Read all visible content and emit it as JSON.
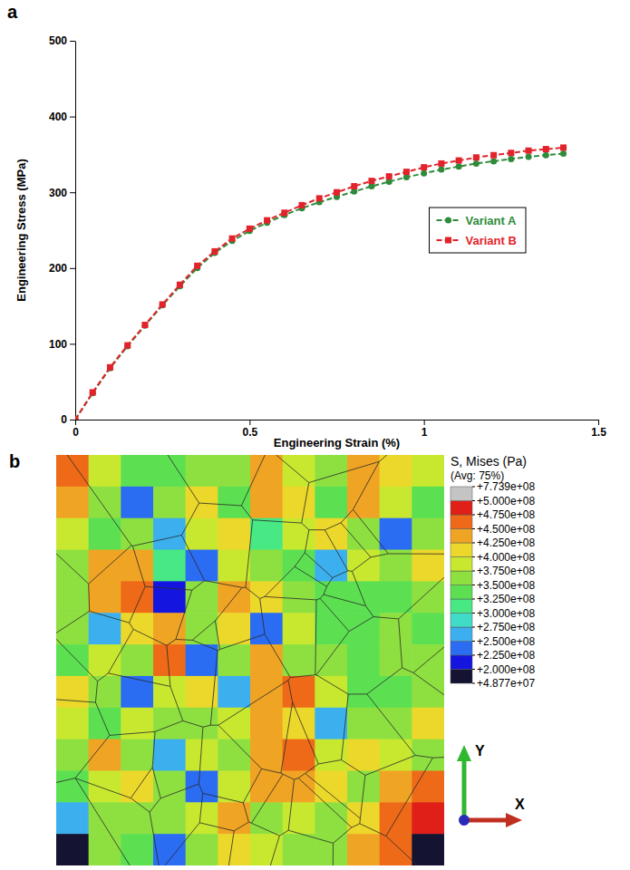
{
  "chart_data": [
    {
      "type": "line",
      "panel_label": "a",
      "x_label": "Engineering Strain (%)",
      "y_label": "Engineering Stress (MPa)",
      "x": [
        0,
        0.05,
        0.1,
        0.15,
        0.2,
        0.25,
        0.3,
        0.35,
        0.4,
        0.45,
        0.5,
        0.55,
        0.6,
        0.65,
        0.7,
        0.75,
        0.8,
        0.85,
        0.9,
        0.95,
        1,
        1.05,
        1.1,
        1.15,
        1.2,
        1.25,
        1.3,
        1.35,
        1.4
      ],
      "series": [
        {
          "name": "Variant A",
          "color": "#2e8b3a",
          "marker": "circle",
          "line_style": "dashed",
          "values": [
            0,
            35,
            68,
            97,
            124,
            151,
            176,
            200,
            220,
            236,
            249,
            260,
            270,
            279,
            287,
            294,
            301,
            308,
            314,
            320,
            325,
            330,
            334,
            338,
            341,
            344,
            347,
            349,
            351
          ]
        },
        {
          "name": "Variant B",
          "color": "#e3232b",
          "marker": "square",
          "line_style": "dashed",
          "values": [
            0,
            36,
            69,
            98,
            125,
            152,
            178,
            203,
            222,
            239,
            252,
            263,
            273,
            283,
            292,
            300,
            308,
            315,
            321,
            327,
            333,
            338,
            342,
            346,
            349,
            352,
            355,
            357,
            359
          ]
        }
      ],
      "xlim": [
        0,
        1.5
      ],
      "ylim": [
        0,
        500
      ],
      "xticks": [
        0,
        0.5,
        1,
        1.5
      ],
      "yticks": [
        0,
        100,
        200,
        300,
        400,
        500
      ],
      "legend": "center right"
    },
    {
      "type": "heatmap",
      "panel_label": "b",
      "annotations": [
        "Y",
        "X"
      ],
      "cells": [
        [
          460000000.0,
          390000000.0,
          340000000.0,
          330000000.0,
          370000000.0,
          360000000.0,
          430000000.0,
          380000000.0,
          350000000.0,
          440000000.0,
          420000000.0,
          380000000.0
        ],
        [
          430000000.0,
          360000000.0,
          230000000.0,
          350000000.0,
          400000000.0,
          340000000.0,
          440000000.0,
          410000000.0,
          330000000.0,
          430000000.0,
          390000000.0,
          340000000.0
        ],
        [
          380000000.0,
          340000000.0,
          370000000.0,
          260000000.0,
          380000000.0,
          420000000.0,
          300000000.0,
          390000000.0,
          400000000.0,
          360000000.0,
          240000000.0,
          350000000.0
        ],
        [
          360000000.0,
          430000000.0,
          440000000.0,
          320000000.0,
          240000000.0,
          380000000.0,
          350000000.0,
          340000000.0,
          250000000.0,
          380000000.0,
          360000000.0,
          420000000.0
        ],
        [
          350000000.0,
          440000000.0,
          450000000.0,
          220000000.0,
          360000000.0,
          430000000.0,
          400000000.0,
          350000000.0,
          340000000.0,
          330000000.0,
          340000000.0,
          360000000.0
        ],
        [
          370000000.0,
          250000000.0,
          400000000.0,
          440000000.0,
          350000000.0,
          420000000.0,
          230000000.0,
          390000000.0,
          340000000.0,
          330000000.0,
          350000000.0,
          340000000.0
        ],
        [
          340000000.0,
          380000000.0,
          360000000.0,
          450000000.0,
          240000000.0,
          360000000.0,
          440000000.0,
          370000000.0,
          350000000.0,
          340000000.0,
          360000000.0,
          350000000.0
        ],
        [
          420000000.0,
          350000000.0,
          230000000.0,
          390000000.0,
          400000000.0,
          250000000.0,
          430000000.0,
          450000000.0,
          380000000.0,
          330000000.0,
          340000000.0,
          370000000.0
        ],
        [
          380000000.0,
          340000000.0,
          390000000.0,
          350000000.0,
          370000000.0,
          390000000.0,
          440000000.0,
          410000000.0,
          260000000.0,
          350000000.0,
          360000000.0,
          410000000.0
        ],
        [
          350000000.0,
          430000000.0,
          360000000.0,
          260000000.0,
          380000000.0,
          360000000.0,
          430000000.0,
          460000000.0,
          390000000.0,
          420000000.0,
          390000000.0,
          360000000.0
        ],
        [
          340000000.0,
          380000000.0,
          400000000.0,
          360000000.0,
          240000000.0,
          390000000.0,
          440000000.0,
          430000000.0,
          400000000.0,
          370000000.0,
          430000000.0,
          460000000.0
        ],
        [
          260000000.0,
          360000000.0,
          370000000.0,
          350000000.0,
          380000000.0,
          430000000.0,
          350000000.0,
          390000000.0,
          360000000.0,
          410000000.0,
          460000000.0,
          480000000.0
        ],
        [
          150000000.0,
          350000000.0,
          340000000.0,
          230000000.0,
          370000000.0,
          420000000.0,
          390000000.0,
          370000000.0,
          350000000.0,
          440000000.0,
          470000000.0,
          180000000.0
        ]
      ],
      "color_bar": {
        "title": "S, Mises (Pa)",
        "subtitle": "(Avg: 75%)",
        "range": [
          48770000.0,
          773900000.0
        ],
        "ticks": [
          {
            "value": 48770000.0,
            "label": "+4.877e+07"
          },
          {
            "value": 200000000.0,
            "label": "+2.000e+08"
          },
          {
            "value": 225000000.0,
            "label": "+2.250e+08"
          },
          {
            "value": 250000000.0,
            "label": "+2.500e+08"
          },
          {
            "value": 275000000.0,
            "label": "+2.750e+08"
          },
          {
            "value": 300000000.0,
            "label": "+3.000e+08"
          },
          {
            "value": 325000000.0,
            "label": "+3.250e+08"
          },
          {
            "value": 350000000.0,
            "label": "+3.500e+08"
          },
          {
            "value": 375000000.0,
            "label": "+3.750e+08"
          },
          {
            "value": 400000000.0,
            "label": "+4.000e+08"
          },
          {
            "value": 425000000.0,
            "label": "+4.250e+08"
          },
          {
            "value": 450000000.0,
            "label": "+4.500e+08"
          },
          {
            "value": 475000000.0,
            "label": "+4.750e+08"
          },
          {
            "value": 500000000.0,
            "label": "+5.000e+08"
          },
          {
            "value": 773900000.0,
            "label": "+7.739e+08"
          }
        ],
        "colors": [
          "#141432",
          "#1515e0",
          "#2a6cf2",
          "#3cb0ee",
          "#40dcc8",
          "#48e884",
          "#5ce052",
          "#8ee040",
          "#c8e830",
          "#ecd82a",
          "#f0a424",
          "#ee6a18",
          "#e02018",
          "#c4c4c4"
        ]
      }
    }
  ]
}
